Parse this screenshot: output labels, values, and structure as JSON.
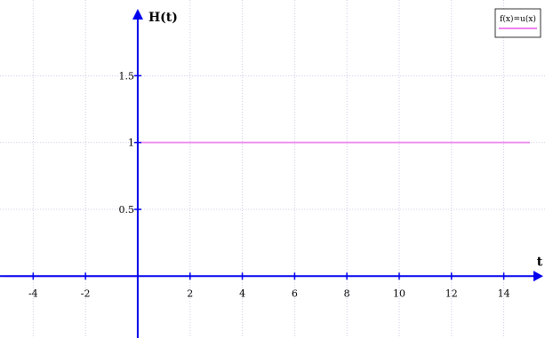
{
  "chart_data": {
    "type": "line",
    "xlabel": "t",
    "ylabel": "H(t)",
    "xlim": [
      -5.1,
      15.0
    ],
    "ylim": [
      -0.29,
      2.0
    ],
    "x_ticks": [
      -4,
      -2,
      2,
      4,
      6,
      8,
      10,
      12,
      14
    ],
    "x_tick_labels": [
      "-4",
      "-2",
      "2",
      "4",
      "6",
      "8",
      "10",
      "12",
      "14"
    ],
    "y_ticks": [
      0.5,
      1,
      1.5
    ],
    "y_tick_labels": [
      "0.5",
      "1",
      "1.5"
    ],
    "grid": true,
    "legend_position": "top-right",
    "series": [
      {
        "name": "f(x)=u(x)",
        "color": "#ee82ee",
        "points": [
          [
            -5.1,
            0
          ],
          [
            0,
            0
          ],
          [
            0,
            1
          ],
          [
            15.0,
            1
          ]
        ]
      }
    ],
    "axis_color": "#0000ee",
    "grid_color": "#c0c0e0"
  }
}
